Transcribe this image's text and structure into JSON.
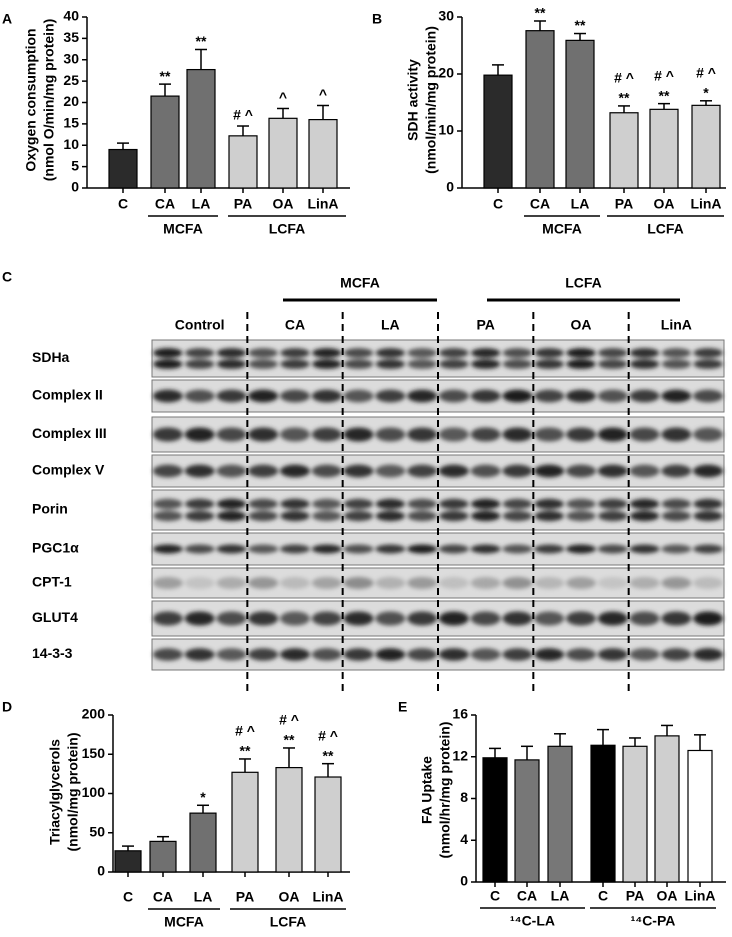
{
  "chart_data": [
    {
      "type": "bar",
      "panel": "A",
      "y_label": [
        "Oxygen consumption",
        "(nmol O/min/mg protein)"
      ],
      "categories": [
        "C",
        "CA",
        "LA",
        "PA",
        "OA",
        "LinA"
      ],
      "groups": [
        "MCFA",
        "LCFA"
      ],
      "values": [
        9,
        21.5,
        27.7,
        12.2,
        16.3,
        16
      ],
      "errors": [
        1.5,
        2.8,
        4.7,
        2.3,
        2.3,
        3.3
      ],
      "annotations": [
        null,
        [
          "**"
        ],
        [
          "**"
        ],
        [
          "# ^"
        ],
        [
          "^"
        ],
        [
          "^"
        ]
      ],
      "colors": [
        "#2b2b2b",
        "#707070",
        "#707070",
        "#cfcfcf",
        "#cfcfcf",
        "#cfcfcf"
      ],
      "ylim": [
        0,
        40
      ],
      "yticks": [
        0,
        5,
        10,
        15,
        20,
        25,
        30,
        35,
        40
      ]
    },
    {
      "type": "bar",
      "panel": "B",
      "y_label": [
        "SDH activity",
        "(nmol/min/mg protein)"
      ],
      "categories": [
        "C",
        "CA",
        "LA",
        "PA",
        "OA",
        "LinA"
      ],
      "groups": [
        "MCFA",
        "LCFA"
      ],
      "values": [
        19.8,
        27.6,
        25.9,
        13.2,
        13.8,
        14.5
      ],
      "errors": [
        1.8,
        1.7,
        1.2,
        1.2,
        1,
        0.8
      ],
      "annotations": [
        null,
        [
          "**"
        ],
        [
          "**"
        ],
        [
          "**",
          "# ^"
        ],
        [
          "**",
          "# ^"
        ],
        [
          "*",
          "# ^"
        ]
      ],
      "colors": [
        "#2b2b2b",
        "#707070",
        "#707070",
        "#cfcfcf",
        "#cfcfcf",
        "#cfcfcf"
      ],
      "ylim": [
        0,
        30
      ],
      "yticks": [
        0,
        10,
        20,
        30
      ]
    },
    {
      "type": "bar",
      "panel": "D",
      "y_label": [
        "Triacylglycerols",
        "(nmol/mg protein)"
      ],
      "categories": [
        "C",
        "CA",
        "LA",
        "PA",
        "OA",
        "LinA"
      ],
      "groups": [
        "MCFA",
        "LCFA"
      ],
      "values": [
        27,
        39,
        75,
        127,
        133,
        121
      ],
      "errors": [
        6,
        6,
        10,
        17,
        25,
        17
      ],
      "annotations": [
        null,
        null,
        [
          "*"
        ],
        [
          "**",
          "# ^"
        ],
        [
          "**",
          "# ^"
        ],
        [
          "**",
          "# ^"
        ]
      ],
      "colors": [
        "#2b2b2b",
        "#707070",
        "#707070",
        "#cfcfcf",
        "#cfcfcf",
        "#cfcfcf"
      ],
      "ylim": [
        0,
        200
      ],
      "yticks": [
        0,
        50,
        100,
        150,
        200
      ]
    },
    {
      "type": "bar",
      "panel": "E",
      "y_label": [
        "FA Uptake",
        "(nmol/hr/mg protein)"
      ],
      "categories": [
        "C",
        "CA",
        "LA",
        "C",
        "PA",
        "OA",
        "LinA"
      ],
      "groups": [
        "¹⁴C-LA",
        "¹⁴C-PA"
      ],
      "values": [
        11.9,
        11.7,
        13,
        13.1,
        13,
        14,
        12.6
      ],
      "errors": [
        0.9,
        1.3,
        1.2,
        1.5,
        0.8,
        1,
        1.5
      ],
      "annotations": [
        null,
        null,
        null,
        null,
        null,
        null,
        null
      ],
      "colors": [
        "#000000",
        "#777777",
        "#777777",
        "#000000",
        "#cfcfcf",
        "#cfcfcf",
        "#ffffff"
      ],
      "ylim": [
        0,
        16
      ],
      "yticks": [
        0,
        4,
        8,
        12,
        16
      ]
    }
  ],
  "blot": {
    "panel": "C",
    "groups": [
      "MCFA",
      "LCFA"
    ],
    "columns": [
      "Control",
      "CA",
      "LA",
      "PA",
      "OA",
      "LinA"
    ],
    "rows": [
      "SDHa",
      "Complex II",
      "Complex III",
      "Complex V",
      "Porin",
      "PGC1α",
      "CPT-1",
      "GLUT4",
      "14-3-3"
    ]
  }
}
